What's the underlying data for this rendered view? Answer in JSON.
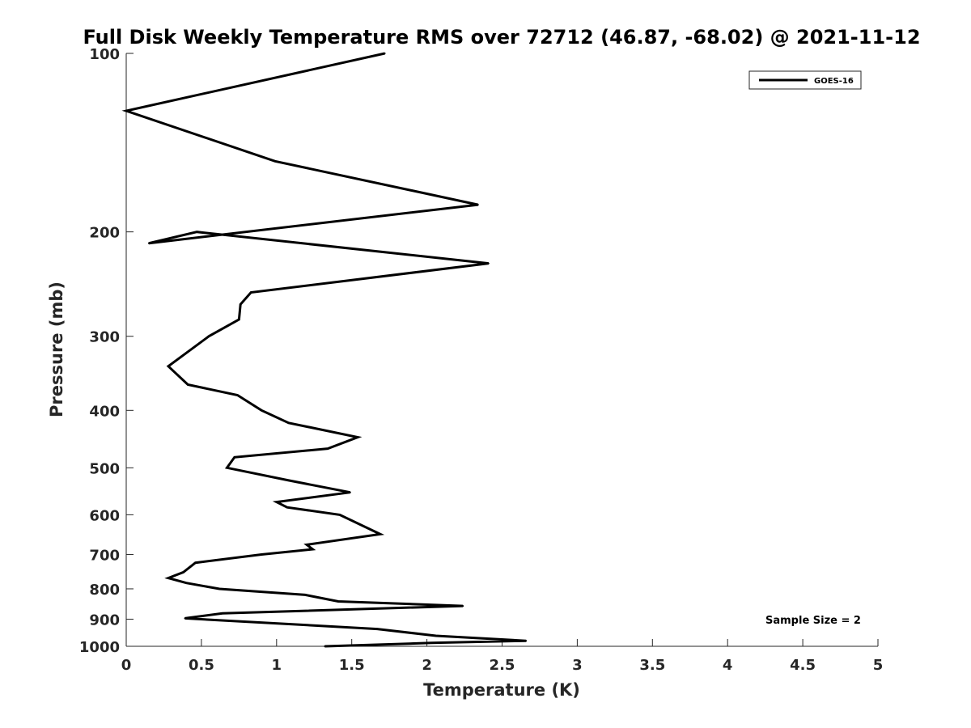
{
  "chart_data": {
    "type": "line",
    "title": "Full Disk Weekly Temperature RMS over 72712 (46.87, -68.02) @ 2021-11-12",
    "xlabel": "Temperature (K)",
    "ylabel": "Pressure (mb)",
    "xlim": [
      0,
      5
    ],
    "ylim": [
      100,
      1000
    ],
    "y_scale": "log",
    "y_direction": "reversed",
    "x_ticks": [
      0,
      0.5,
      1,
      1.5,
      2,
      2.5,
      3,
      3.5,
      4,
      4.5,
      5
    ],
    "x_tick_labels": [
      "0",
      "0.5",
      "1",
      "1.5",
      "2",
      "2.5",
      "3",
      "3.5",
      "4",
      "4.5",
      "5"
    ],
    "y_ticks": [
      100,
      200,
      300,
      400,
      500,
      600,
      700,
      800,
      900,
      1000
    ],
    "y_tick_labels": [
      "100",
      "200",
      "300",
      "400",
      "500",
      "600",
      "700",
      "800",
      "900",
      "1000"
    ],
    "grid": false,
    "legend": {
      "position": "top-right",
      "entries": [
        "GOES-16"
      ]
    },
    "annotation": "Sample Size = 2",
    "series": [
      {
        "name": "GOES-16",
        "color": "#000000",
        "points": [
          [
            1.72,
            100
          ],
          [
            0.0,
            125
          ],
          [
            0.99,
            152
          ],
          [
            2.34,
            180
          ],
          [
            0.15,
            209
          ],
          [
            0.47,
            200
          ],
          [
            2.41,
            226
          ],
          [
            0.83,
            253
          ],
          [
            0.76,
            265
          ],
          [
            0.75,
            281
          ],
          [
            0.55,
            300
          ],
          [
            0.28,
            337
          ],
          [
            0.41,
            362
          ],
          [
            0.74,
            377
          ],
          [
            0.9,
            400
          ],
          [
            1.08,
            420
          ],
          [
            1.54,
            444
          ],
          [
            1.34,
            464
          ],
          [
            0.72,
            480
          ],
          [
            0.67,
            500
          ],
          [
            1.08,
            525
          ],
          [
            1.49,
            550
          ],
          [
            1.0,
            571
          ],
          [
            1.07,
            583
          ],
          [
            1.42,
            600
          ],
          [
            1.69,
            647
          ],
          [
            1.2,
            674
          ],
          [
            1.24,
            686
          ],
          [
            0.9,
            700
          ],
          [
            0.46,
            723
          ],
          [
            0.38,
            750
          ],
          [
            0.28,
            767
          ],
          [
            0.4,
            782
          ],
          [
            0.62,
            800
          ],
          [
            1.19,
            819
          ],
          [
            1.41,
            840
          ],
          [
            2.24,
            855
          ],
          [
            0.64,
            880
          ],
          [
            0.39,
            897
          ],
          [
            1.67,
            935
          ],
          [
            2.06,
            960
          ],
          [
            2.66,
            979
          ],
          [
            2.03,
            987
          ],
          [
            1.32,
            1000
          ]
        ]
      }
    ]
  }
}
